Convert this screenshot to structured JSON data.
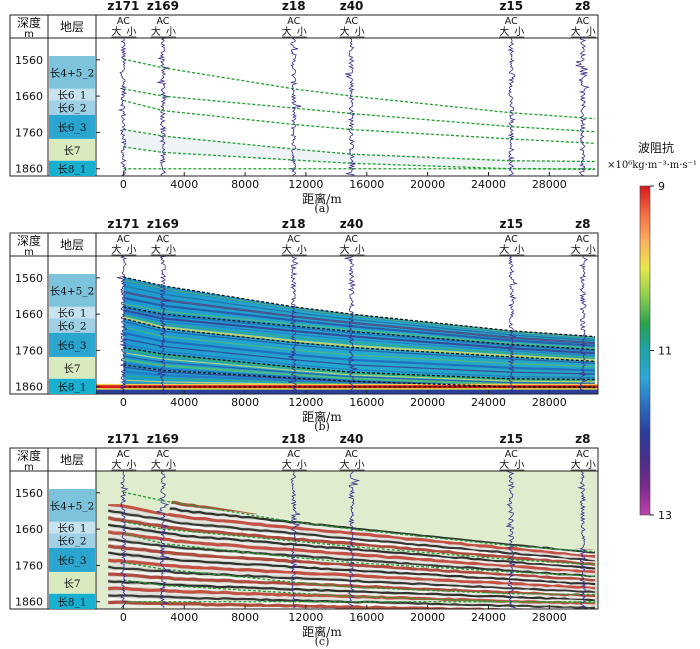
{
  "common": {
    "depth_header": "深度",
    "depth_unit": "m",
    "layer_header": "地层",
    "ac_label": "AC",
    "ac_big": "大",
    "ac_small": "小",
    "xlabel": "距离/m",
    "x_ticks": [
      0,
      4000,
      8000,
      12000,
      16000,
      20000,
      24000,
      28000
    ],
    "depth_ticks": [
      1560,
      1660,
      1760,
      1860
    ],
    "xlim": [
      -1800,
      31200
    ],
    "ylim": [
      1500,
      1880
    ]
  },
  "wells": [
    {
      "name": "z171",
      "x": 0
    },
    {
      "name": "z169",
      "x": 2600
    },
    {
      "name": "z18",
      "x": 11200
    },
    {
      "name": "z40",
      "x": 15000
    },
    {
      "name": "z15",
      "x": 25500
    },
    {
      "name": "z8",
      "x": 30200
    }
  ],
  "layers": [
    {
      "name": "长4+5_2",
      "top": 1540,
      "bottom": 1640,
      "color": "#7ec3dc"
    },
    {
      "name": "长6_1",
      "top": 1640,
      "bottom": 1672,
      "color": "#c7e3f0"
    },
    {
      "name": "长6_2",
      "top": 1672,
      "bottom": 1712,
      "color": "#9fd0e6"
    },
    {
      "name": "长6_3",
      "top": 1712,
      "bottom": 1778,
      "color": "#2aa5cf"
    },
    {
      "name": "长7",
      "top": 1778,
      "bottom": 1838,
      "color": "#d9eabf"
    },
    {
      "name": "长8_1",
      "top": 1838,
      "bottom": 1880,
      "color": "#17b0d0"
    }
  ],
  "horizons": [
    {
      "name": "长4+5_2 底",
      "points": [
        [
          0,
          1558
        ],
        [
          2600,
          1582
        ],
        [
          11200,
          1640
        ],
        [
          15000,
          1660
        ],
        [
          25500,
          1706
        ],
        [
          31000,
          1722
        ]
      ]
    },
    {
      "name": "长6_1 底",
      "points": [
        [
          0,
          1640
        ],
        [
          2600,
          1660
        ],
        [
          11200,
          1693
        ],
        [
          15000,
          1708
        ],
        [
          25500,
          1744
        ],
        [
          31000,
          1758
        ]
      ]
    },
    {
      "name": "长6_2 底",
      "points": [
        [
          0,
          1672
        ],
        [
          2600,
          1700
        ],
        [
          11200,
          1738
        ],
        [
          15000,
          1752
        ],
        [
          25500,
          1778
        ],
        [
          31000,
          1790
        ]
      ]
    },
    {
      "name": "长6_3 底",
      "points": [
        [
          0,
          1752
        ],
        [
          2600,
          1770
        ],
        [
          11200,
          1806
        ],
        [
          15000,
          1820
        ],
        [
          25500,
          1838
        ],
        [
          31000,
          1840
        ]
      ]
    },
    {
      "name": "长7 底",
      "points": [
        [
          0,
          1800
        ],
        [
          2600,
          1815
        ],
        [
          11200,
          1836
        ],
        [
          15000,
          1845
        ],
        [
          25500,
          1860
        ],
        [
          31000,
          1862
        ]
      ]
    },
    {
      "name": "长8_1 底",
      "points": [
        [
          0,
          1860
        ],
        [
          31000,
          1860
        ]
      ]
    }
  ],
  "colorbar": {
    "title": "波阻抗",
    "unit": "×10⁶kg·m⁻³·m·s⁻¹",
    "ticks": [
      9,
      11,
      13
    ],
    "colors": [
      "#d7191c",
      "#f46d43",
      "#fdae61",
      "#e8e84a",
      "#8fce4f",
      "#2ba24c",
      "#1fa3a8",
      "#2fa8d8",
      "#2c6fc1",
      "#2a3f9c",
      "#4b2e8a",
      "#7b2a8c",
      "#c042b0"
    ]
  },
  "chart_data": [
    {
      "type": "line",
      "panel": "(a)",
      "description_label": "(a)",
      "xlabel": "距离/m",
      "x_ticks": [
        0,
        4000,
        8000,
        12000,
        16000,
        20000,
        24000,
        28000
      ],
      "y_ticks": [
        1560,
        1660,
        1760,
        1860
      ],
      "wells": [
        "z171",
        "z169",
        "z18",
        "z40",
        "z15",
        "z8"
      ]
    },
    {
      "type": "heatmap",
      "panel": "(b)",
      "description_label": "(b)",
      "xlabel": "距离/m",
      "x_ticks": [
        0,
        4000,
        8000,
        12000,
        16000,
        20000,
        24000,
        28000
      ],
      "y_ticks": [
        1560,
        1660,
        1760,
        1860
      ],
      "colorbar_range": [
        9,
        13
      ]
    },
    {
      "type": "heatmap",
      "panel": "(c)",
      "description_label": "(c)",
      "xlabel": "距离/m",
      "x_ticks": [
        0,
        4000,
        8000,
        12000,
        16000,
        20000,
        24000,
        28000
      ],
      "y_ticks": [
        1560,
        1660,
        1760,
        1860
      ]
    }
  ]
}
